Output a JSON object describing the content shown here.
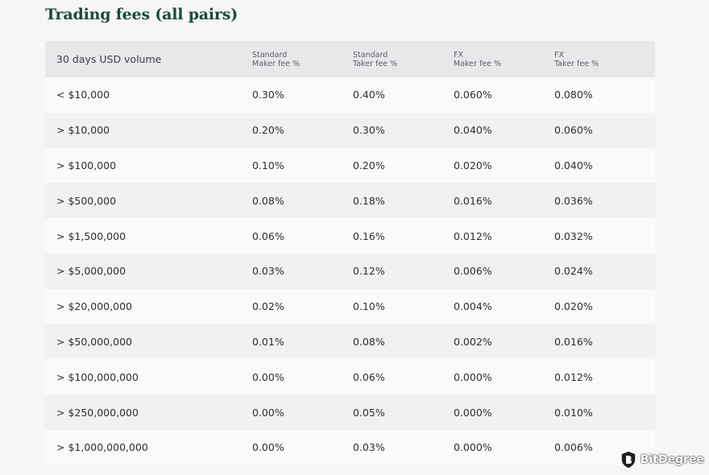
{
  "title": "Trading fees (all pairs)",
  "table": {
    "headers": [
      {
        "line1": "30 days USD volume",
        "line2": ""
      },
      {
        "line1": "Standard",
        "line2": "Maker fee %"
      },
      {
        "line1": "Standard",
        "line2": "Taker fee %"
      },
      {
        "line1": "FX",
        "line2": "Maker fee %"
      },
      {
        "line1": "FX",
        "line2": "Taker fee %"
      }
    ],
    "rows": [
      [
        "< $10,000",
        "0.30%",
        "0.40%",
        "0.060%",
        "0.080%"
      ],
      [
        "> $10,000",
        "0.20%",
        "0.30%",
        "0.040%",
        "0.060%"
      ],
      [
        "> $100,000",
        "0.10%",
        "0.20%",
        "0.020%",
        "0.040%"
      ],
      [
        "> $500,000",
        "0.08%",
        "0.18%",
        "0.016%",
        "0.036%"
      ],
      [
        "> $1,500,000",
        "0.06%",
        "0.16%",
        "0.012%",
        "0.032%"
      ],
      [
        "> $5,000,000",
        "0.03%",
        "0.12%",
        "0.006%",
        "0.024%"
      ],
      [
        "> $20,000,000",
        "0.02%",
        "0.10%",
        "0.004%",
        "0.020%"
      ],
      [
        "> $50,000,000",
        "0.01%",
        "0.08%",
        "0.002%",
        "0.016%"
      ],
      [
        "> $100,000,000",
        "0.00%",
        "0.06%",
        "0.000%",
        "0.012%"
      ],
      [
        "> $250,000,000",
        "0.00%",
        "0.05%",
        "0.000%",
        "0.010%"
      ],
      [
        "> $1,000,000,000",
        "0.00%",
        "0.03%",
        "0.000%",
        "0.006%"
      ]
    ]
  },
  "watermark": {
    "text": "BitDegree",
    "icon": "bitdegree-logo-icon"
  }
}
